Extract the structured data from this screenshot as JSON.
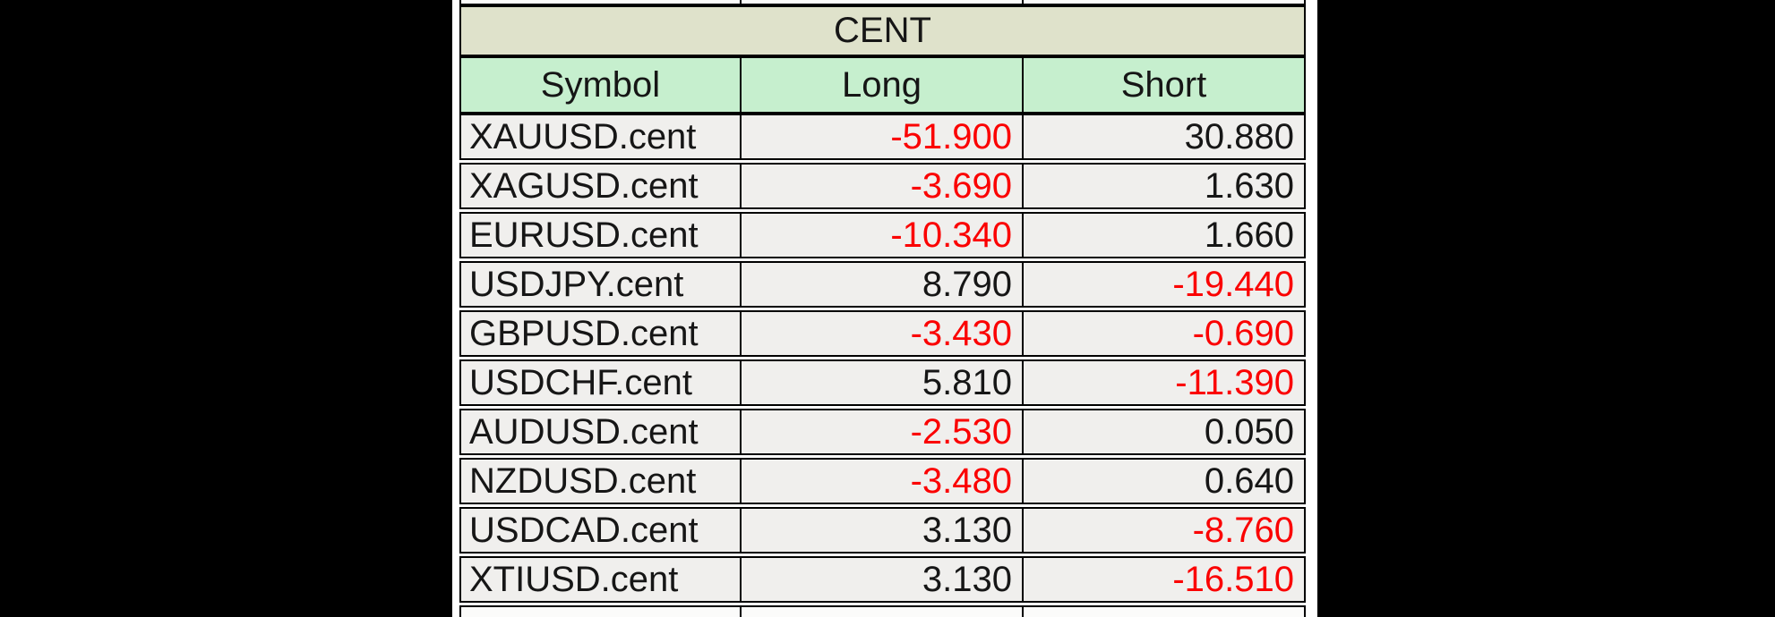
{
  "window": {
    "letterbox_color": "#000000",
    "panel_color": "#ffffff"
  },
  "table": {
    "title": "CENT",
    "columns": [
      "Symbol",
      "Long",
      "Short"
    ],
    "rows": [
      {
        "symbol": "XAUUSD.cent",
        "long": "-51.900",
        "short": "30.880"
      },
      {
        "symbol": "XAGUSD.cent",
        "long": "-3.690",
        "short": "1.630"
      },
      {
        "symbol": "EURUSD.cent",
        "long": "-10.340",
        "short": "1.660"
      },
      {
        "symbol": "USDJPY.cent",
        "long": "8.790",
        "short": "-19.440"
      },
      {
        "symbol": "GBPUSD.cent",
        "long": "-3.430",
        "short": "-0.690"
      },
      {
        "symbol": "USDCHF.cent",
        "long": "5.810",
        "short": "-11.390"
      },
      {
        "symbol": "AUDUSD.cent",
        "long": "-2.530",
        "short": "0.050"
      },
      {
        "symbol": "NZDUSD.cent",
        "long": "-3.480",
        "short": "0.640"
      },
      {
        "symbol": "USDCAD.cent",
        "long": "3.130",
        "short": "-8.760"
      },
      {
        "symbol": "XTIUSD.cent",
        "long": "3.130",
        "short": "-16.510"
      }
    ]
  },
  "colors": {
    "title_cell_background": "#dfe2cb",
    "header_cell_background": "#c6efce",
    "data_cell_background": "#f0efed",
    "text": "#161616",
    "negative_text": "#fb0000",
    "border": "#000000"
  }
}
